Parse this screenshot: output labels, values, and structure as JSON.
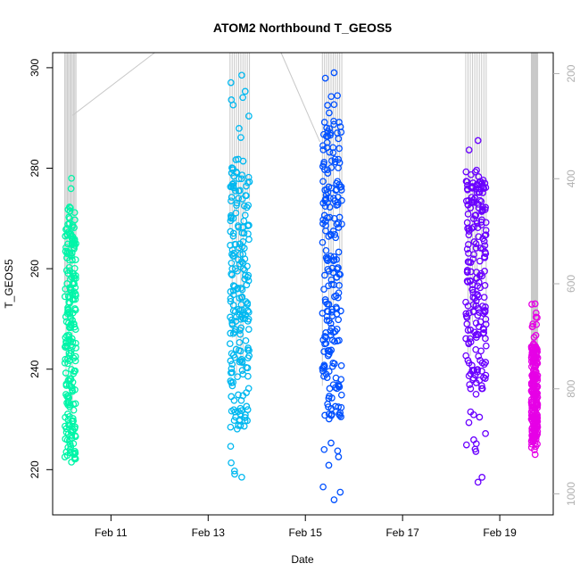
{
  "chart_data": {
    "type": "scatter",
    "title": "ATOM2 Northbound T_GEOS5",
    "xlabel": "Date",
    "ylabel": "T_GEOS5",
    "xlim_days": [
      9.8,
      20.1
    ],
    "ylim": [
      211,
      303
    ],
    "y2lim": [
      1040,
      160
    ],
    "x_ticks": [
      {
        "value": 11,
        "label": "Feb 11"
      },
      {
        "value": 13,
        "label": "Feb 13"
      },
      {
        "value": 15,
        "label": "Feb 15"
      },
      {
        "value": 17,
        "label": "Feb 17"
      },
      {
        "value": 19,
        "label": "Feb 19"
      }
    ],
    "y_ticks": [
      220,
      240,
      260,
      280,
      300
    ],
    "y2_ticks": [
      200,
      400,
      600,
      800,
      1000
    ],
    "grid": false,
    "legend": "none",
    "colors": {
      "pressure_lines": "#c8c8c8",
      "axis": "#000000",
      "right_axis": "#b0b0b0"
    },
    "series": [
      {
        "color": "#00f5a8",
        "x_range": [
          10.05,
          10.28
        ],
        "y_range": [
          221.5,
          278
        ],
        "band": [
          222,
          272
        ]
      },
      {
        "color": "#00b8f0",
        "x_range": [
          13.45,
          13.85
        ],
        "y_range": [
          218.5,
          298.5
        ],
        "band": [
          228,
          282
        ]
      },
      {
        "color": "#0050ff",
        "x_range": [
          15.35,
          15.75
        ],
        "y_range": [
          214,
          299
        ],
        "band": [
          230,
          290
        ]
      },
      {
        "color": "#6a00ff",
        "x_range": [
          18.3,
          18.72
        ],
        "y_range": [
          217.5,
          285.5
        ],
        "band": [
          236,
          278
        ]
      },
      {
        "color": "#e600e6",
        "x_range": [
          19.65,
          19.78
        ],
        "y_range": [
          223,
          253
        ],
        "band": [
          225,
          245
        ]
      }
    ],
    "pressure_lines": [
      {
        "x": [
          10.2,
          11.9
        ],
        "pressure": [
          280,
          160
        ]
      },
      {
        "x": [
          14.5,
          15.3
        ],
        "pressure": [
          160,
          330
        ]
      }
    ]
  }
}
